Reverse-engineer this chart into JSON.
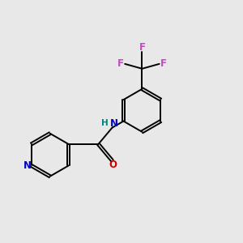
{
  "background_color": "#e8e8e8",
  "bond_color": "#000000",
  "N_color": "#0000cc",
  "O_color": "#cc0000",
  "F_color": "#cc44cc",
  "H_color": "#008080",
  "figsize": [
    3.0,
    3.0
  ],
  "dpi": 100,
  "lw": 1.4,
  "fs": 8.5,
  "xlim": [
    0.0,
    10.0
  ],
  "ylim": [
    0.0,
    10.0
  ]
}
